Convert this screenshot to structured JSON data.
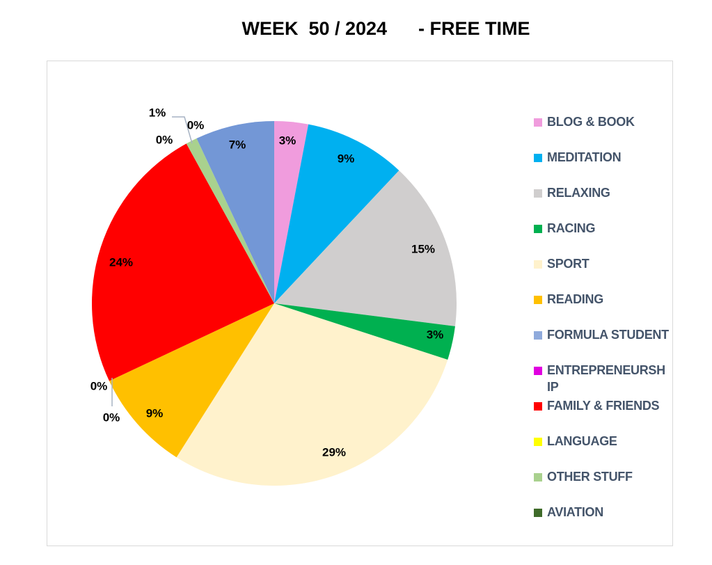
{
  "chart_data": {
    "type": "pie",
    "title": "WEEK  50 / 2024      - FREE TIME",
    "legend_position": "right",
    "slices": [
      {
        "name": "BLOG & BOOK",
        "value": 3,
        "label": "3%",
        "color": "#F09CDD"
      },
      {
        "name": "MEDITATION",
        "value": 9,
        "label": "9%",
        "color": "#00B0F0"
      },
      {
        "name": "RELAXING",
        "value": 15,
        "label": "15%",
        "color": "#D0CECE"
      },
      {
        "name": "RACING",
        "value": 3,
        "label": "3%",
        "color": "#00B050"
      },
      {
        "name": "SPORT",
        "value": 29,
        "label": "29%",
        "color": "#FFF2CC"
      },
      {
        "name": "READING",
        "value": 9,
        "label": "9%",
        "color": "#FFC000"
      },
      {
        "name": "FORMULA STUDENT",
        "value": 0,
        "label": "0%",
        "color": "#8FAADC"
      },
      {
        "name": "ENTREPRENEURSHIP",
        "value": 0,
        "label": "0%",
        "color": "#E000E0"
      },
      {
        "name": "FAMILY & FRIENDS",
        "value": 24,
        "label": "24%",
        "color": "#FF0000"
      },
      {
        "name": "LANGUAGE",
        "value": 0,
        "label": "0%",
        "color": "#FFFF00"
      },
      {
        "name": "OTHER STUFF",
        "value": 1,
        "label": "1%",
        "color": "#A9D18E"
      },
      {
        "name": "AVIATION",
        "value": 0,
        "label": "0%",
        "color": "#3F6B2A"
      },
      {
        "name": "",
        "value": 7,
        "label": "7%",
        "color": "#7397D6"
      }
    ],
    "legend": [
      {
        "text": "BLOG & BOOK",
        "color": "#F09CDD"
      },
      {
        "text": "MEDITATION",
        "color": "#00B0F0"
      },
      {
        "text": "RELAXING",
        "color": "#D0CECE"
      },
      {
        "text": "RACING",
        "color": "#00B050"
      },
      {
        "text": "SPORT",
        "color": "#FFF2CC"
      },
      {
        "text": "READING",
        "color": "#FFC000"
      },
      {
        "text": "FORMULA STUDENT",
        "color": "#8FAADC"
      },
      {
        "text": "ENTREPRENEURSH IP",
        "color": "#E000E0"
      },
      {
        "text": "FAMILY & FRIENDS",
        "color": "#FF0000"
      },
      {
        "text": "LANGUAGE",
        "color": "#FFFF00"
      },
      {
        "text": "OTHER STUFF",
        "color": "#A9D18E"
      },
      {
        "text": "AVIATION",
        "color": "#3F6B2A"
      }
    ]
  }
}
